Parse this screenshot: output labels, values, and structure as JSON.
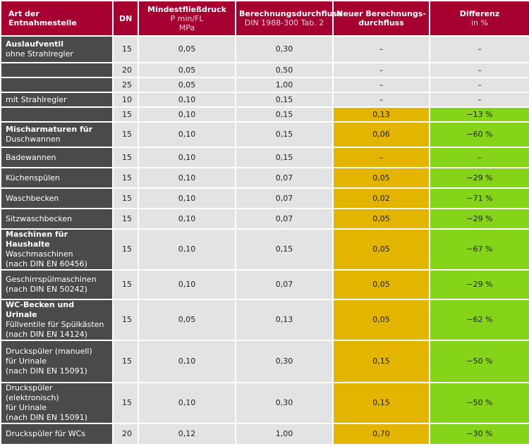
{
  "header": {
    "col_name": "Art der Entnahmestelle",
    "col_dn": "DN",
    "col_pressure": [
      "Mindestfließdruck",
      "P min/FL",
      "MPa"
    ],
    "col_flow": [
      "Berechnungsdurchfluss",
      "DIN 1988-300 Tab. 2"
    ],
    "col_new": [
      "Neuer Berechnungs-",
      "durchfluss"
    ],
    "col_diff": [
      "Differenz",
      "in %"
    ]
  },
  "rows": [
    {
      "lines": [
        "Auslaufventil",
        "ohne Strahlregler"
      ],
      "bold_first": true,
      "dn": "15",
      "pressure": "0,05",
      "flow": "0,30",
      "neu": "–",
      "diff": "–",
      "hl": false,
      "height": 36
    },
    {
      "lines": [
        ""
      ],
      "bold_first": false,
      "dn": "20",
      "pressure": "0,05",
      "flow": "0,50",
      "neu": "–",
      "diff": "–",
      "hl": false,
      "height": 19
    },
    {
      "lines": [
        ""
      ],
      "bold_first": false,
      "dn": "25",
      "pressure": "0,05",
      "flow": "1,00",
      "neu": "–",
      "diff": "–",
      "hl": false,
      "height": 19
    },
    {
      "lines": [
        "mit Strahlregler"
      ],
      "bold_first": false,
      "dn": "10",
      "pressure": "0,10",
      "flow": "0,15",
      "neu": "–",
      "diff": "–",
      "hl": false,
      "height": 19
    },
    {
      "lines": [
        ""
      ],
      "bold_first": false,
      "dn": "15",
      "pressure": "0,10",
      "flow": "0,15",
      "neu": "0,13",
      "diff": "−13 %",
      "hl": true,
      "height": 19
    },
    {
      "lines": [
        "Mischarmaturen für",
        "Duschwannen"
      ],
      "bold_first": true,
      "dn": "15",
      "pressure": "0,10",
      "flow": "0,15",
      "neu": "0,06",
      "diff": "−60 %",
      "hl": true,
      "height": 34
    },
    {
      "lines": [
        "Badewannen"
      ],
      "bold_first": false,
      "dn": "15",
      "pressure": "0,10",
      "flow": "0,15",
      "neu": "–",
      "diff": "–",
      "hl": true,
      "height": 27
    },
    {
      "lines": [
        "Küchenspülen"
      ],
      "bold_first": false,
      "dn": "15",
      "pressure": "0,10",
      "flow": "0,07",
      "neu": "0,05",
      "diff": "−29 %",
      "hl": true,
      "height": 27
    },
    {
      "lines": [
        "Waschbecken"
      ],
      "bold_first": false,
      "dn": "15",
      "pressure": "0,10",
      "flow": "0,07",
      "neu": "0,02",
      "diff": "−71 %",
      "hl": true,
      "height": 27
    },
    {
      "lines": [
        "Sitzwaschbecken"
      ],
      "bold_first": false,
      "dn": "15",
      "pressure": "0,10",
      "flow": "0,07",
      "neu": "0,05",
      "diff": "−29 %",
      "hl": true,
      "height": 27
    },
    {
      "lines": [
        "Maschinen für Haushalte",
        "Waschmaschinen",
        "(nach DIN EN 60456)"
      ],
      "bold_first": true,
      "dn": "15",
      "pressure": "0,10",
      "flow": "0,15",
      "neu": "0,05",
      "diff": "−67 %",
      "hl": true,
      "height": 54
    },
    {
      "lines": [
        "Geschirrspülmaschinen",
        "(nach DIN EN 50242)"
      ],
      "bold_first": false,
      "dn": "15",
      "pressure": "0,10",
      "flow": "0,07",
      "neu": "0,05",
      "diff": "−29 %",
      "hl": true,
      "height": 40
    },
    {
      "lines": [
        "WC-Becken und Urinale",
        "Füllventile für Spülkästen",
        "(nach DIN EN 14124)"
      ],
      "bold_first": true,
      "dn": "15",
      "pressure": "0,05",
      "flow": "0,13",
      "neu": "0,05",
      "diff": "−62 %",
      "hl": true,
      "height": 54
    },
    {
      "lines": [
        "Druckspüler (manuell)",
        " für Urinale",
        "(nach DIN EN 15091)"
      ],
      "bold_first": false,
      "dn": "15",
      "pressure": "0,10",
      "flow": "0,30",
      "neu": "0,15",
      "diff": "−50 %",
      "hl": true,
      "height": 58
    },
    {
      "lines": [
        "Druckspüler (elektronisch)",
        " für Urinale",
        "(nach DIN EN 15091)"
      ],
      "bold_first": false,
      "dn": "15",
      "pressure": "0,10",
      "flow": "0,30",
      "neu": "0,15",
      "diff": "−50 %",
      "hl": true,
      "height": 56
    },
    {
      "lines": [
        "Druckspüler für WCs"
      ],
      "bold_first": false,
      "dn": "20",
      "pressure": "0,12",
      "flow": "1,00",
      "neu": "0,70",
      "diff": "−30 %",
      "hl": true,
      "height": 28
    }
  ]
}
